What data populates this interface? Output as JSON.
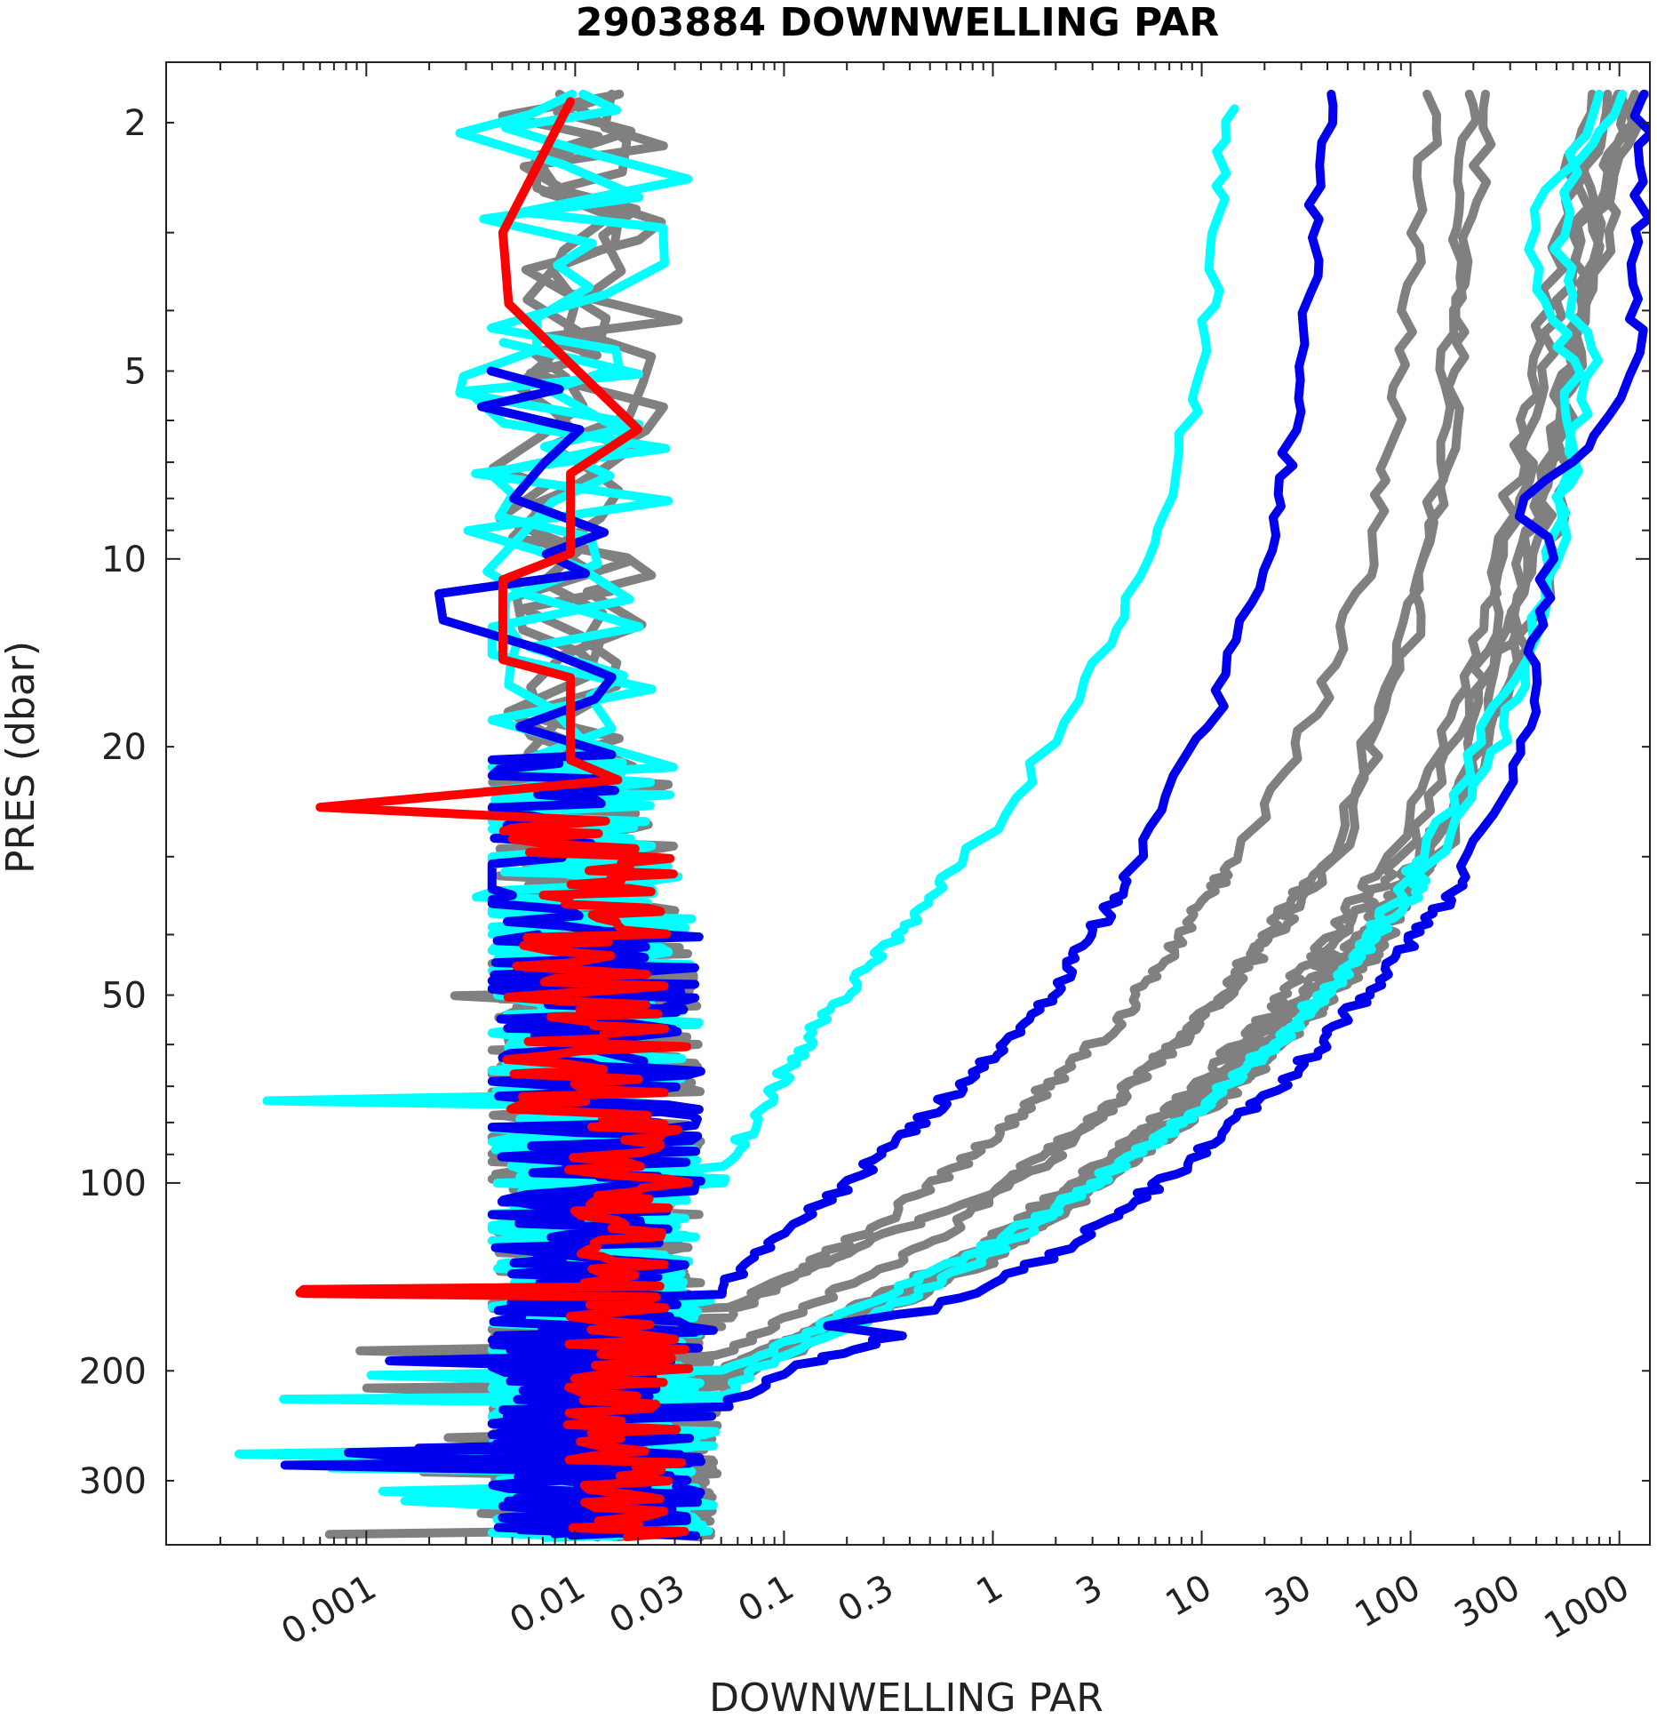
{
  "chart_data": {
    "type": "line",
    "title": "2903884  DOWNWELLING PAR",
    "xlabel": "DOWNWELLING PAR",
    "ylabel": "PRES (dbar)",
    "x_scale": "log",
    "y_scale": "log",
    "y_inverted": true,
    "xlim": [
      0.00011,
      1400
    ],
    "ylim": [
      1.6,
      380
    ],
    "x_ticks": [
      {
        "value": 0.001,
        "label": "0.001"
      },
      {
        "value": 0.01,
        "label": "0.01"
      },
      {
        "value": 0.03,
        "label": "0.03"
      },
      {
        "value": 0.1,
        "label": "0.1"
      },
      {
        "value": 0.3,
        "label": "0.3"
      },
      {
        "value": 1,
        "label": "1"
      },
      {
        "value": 3,
        "label": "3"
      },
      {
        "value": 10,
        "label": "10"
      },
      {
        "value": 30,
        "label": "30"
      },
      {
        "value": 100,
        "label": "100"
      },
      {
        "value": 300,
        "label": "300"
      },
      {
        "value": 1000,
        "label": "1000"
      }
    ],
    "y_ticks": [
      {
        "value": 2,
        "label": "2"
      },
      {
        "value": 5,
        "label": "5"
      },
      {
        "value": 10,
        "label": "10"
      },
      {
        "value": 20,
        "label": "20"
      },
      {
        "value": 50,
        "label": "50"
      },
      {
        "value": 100,
        "label": "100"
      },
      {
        "value": 200,
        "label": "200"
      },
      {
        "value": 300,
        "label": "300"
      }
    ],
    "grid": false,
    "colors": {
      "gray": "#808080",
      "cyan": "#00ffff",
      "blue": "#0000ee",
      "red": "#ff0000"
    },
    "series": [
      {
        "color": "gray",
        "kind": "night",
        "base": 0.0085,
        "jitter": 0.35,
        "start_pres": 1.8,
        "seed": 11
      },
      {
        "color": "gray",
        "kind": "night",
        "base": 0.011,
        "jitter": 0.35,
        "start_pres": 1.8,
        "seed": 12
      },
      {
        "color": "gray",
        "kind": "night",
        "base": 0.013,
        "jitter": 0.4,
        "start_pres": 1.8,
        "seed": 13
      },
      {
        "color": "gray",
        "kind": "night",
        "base": 0.0095,
        "jitter": 0.3,
        "start_pres": 1.8,
        "seed": 14
      },
      {
        "color": "gray",
        "kind": "day",
        "points": [
          [
            240,
            1.8
          ],
          [
            180,
            3.5
          ],
          [
            150,
            7
          ],
          [
            100,
            14
          ],
          [
            45,
            30
          ],
          [
            13,
            50
          ],
          [
            3,
            80
          ],
          [
            0.9,
            105
          ],
          [
            0.25,
            125
          ],
          [
            0.07,
            150
          ],
          [
            0.03,
            180
          ],
          [
            0.015,
            220
          ],
          [
            0.006,
            300
          ],
          [
            0.003,
            360
          ]
        ],
        "seed": 21
      },
      {
        "color": "gray",
        "kind": "day",
        "points": [
          [
            1100,
            1.8
          ],
          [
            650,
            4
          ],
          [
            420,
            8
          ],
          [
            300,
            12
          ],
          [
            160,
            25
          ],
          [
            60,
            40
          ],
          [
            14,
            65
          ],
          [
            3,
            95
          ],
          [
            0.8,
            130
          ],
          [
            0.18,
            165
          ],
          [
            0.05,
            200
          ],
          [
            0.025,
            250
          ],
          [
            0.02,
            340
          ]
        ],
        "seed": 22
      },
      {
        "color": "gray",
        "kind": "day",
        "points": [
          [
            900,
            1.8
          ],
          [
            500,
            4
          ],
          [
            330,
            8
          ],
          [
            230,
            14
          ],
          [
            110,
            27
          ],
          [
            30,
            50
          ],
          [
            6,
            85
          ],
          [
            1.4,
            120
          ],
          [
            0.3,
            155
          ],
          [
            0.07,
            190
          ],
          [
            0.03,
            240
          ],
          [
            0.02,
            330
          ]
        ],
        "seed": 23
      },
      {
        "color": "gray",
        "kind": "day",
        "points": [
          [
            700,
            1.8
          ],
          [
            420,
            4.5
          ],
          [
            280,
            9
          ],
          [
            180,
            16
          ],
          [
            80,
            30
          ],
          [
            20,
            55
          ],
          [
            4,
            90
          ],
          [
            1,
            125
          ],
          [
            0.2,
            160
          ],
          [
            0.06,
            200
          ],
          [
            0.03,
            260
          ],
          [
            0.025,
            350
          ]
        ],
        "seed": 24
      },
      {
        "color": "gray",
        "kind": "day",
        "points": [
          [
            1300,
            1.8
          ],
          [
            700,
            4
          ],
          [
            450,
            8
          ],
          [
            330,
            13
          ],
          [
            180,
            26
          ],
          [
            70,
            42
          ],
          [
            18,
            65
          ],
          [
            4,
            95
          ],
          [
            1,
            130
          ],
          [
            0.25,
            165
          ],
          [
            0.06,
            200
          ],
          [
            0.03,
            260
          ]
        ],
        "seed": 25
      },
      {
        "color": "gray",
        "kind": "day",
        "points": [
          [
            1200,
            1.8
          ],
          [
            650,
            4
          ],
          [
            420,
            8
          ],
          [
            310,
            13
          ],
          [
            170,
            25
          ],
          [
            60,
            45
          ],
          [
            15,
            70
          ],
          [
            3.5,
            100
          ],
          [
            0.9,
            135
          ],
          [
            0.2,
            170
          ],
          [
            0.05,
            210
          ],
          [
            0.025,
            280
          ]
        ],
        "seed": 26
      },
      {
        "color": "gray",
        "kind": "day",
        "points": [
          [
            200,
            1.8
          ],
          [
            160,
            4
          ],
          [
            130,
            8
          ],
          [
            90,
            14
          ],
          [
            40,
            30
          ],
          [
            10,
            55
          ],
          [
            2,
            90
          ],
          [
            0.5,
            125
          ],
          [
            0.12,
            160
          ],
          [
            0.04,
            200
          ],
          [
            0.02,
            260
          ]
        ],
        "seed": 27
      },
      {
        "color": "gray",
        "kind": "day",
        "points": [
          [
            130,
            1.8
          ],
          [
            90,
            5
          ],
          [
            70,
            9
          ],
          [
            40,
            16
          ],
          [
            15,
            30
          ],
          [
            4,
            55
          ],
          [
            1,
            85
          ],
          [
            0.3,
            115
          ],
          [
            0.08,
            150
          ],
          [
            0.03,
            190
          ],
          [
            0.015,
            250
          ]
        ],
        "seed": 28
      },
      {
        "color": "gray",
        "kind": "day",
        "points": [
          [
            800,
            1.8
          ],
          [
            600,
            5
          ],
          [
            500,
            10
          ],
          [
            250,
            18
          ],
          [
            90,
            35
          ],
          [
            25,
            55
          ],
          [
            7,
            80
          ],
          [
            2,
            110
          ],
          [
            0.5,
            145
          ],
          [
            0.1,
            180
          ],
          [
            0.04,
            220
          ],
          [
            0.02,
            300
          ]
        ],
        "seed": 29
      },
      {
        "color": "cyan",
        "kind": "night",
        "base": 0.0075,
        "jitter": 0.45,
        "start_pres": 1.8,
        "seed": 31
      },
      {
        "color": "cyan",
        "kind": "night",
        "base": 0.012,
        "jitter": 0.5,
        "start_pres": 1.8,
        "seed": 32
      },
      {
        "color": "cyan",
        "kind": "night",
        "base": 0.008,
        "jitter": 0.6,
        "start_pres": 4.5,
        "seed": 33
      },
      {
        "color": "cyan",
        "kind": "day",
        "points": [
          [
            13,
            1.9
          ],
          [
            11,
            4
          ],
          [
            8,
            7
          ],
          [
            5,
            11
          ],
          [
            2.5,
            17
          ],
          [
            1,
            27
          ],
          [
            0.35,
            40
          ],
          [
            0.15,
            55
          ],
          [
            0.08,
            75
          ],
          [
            0.05,
            95
          ],
          [
            0.04,
            120
          ],
          [
            0.035,
            150
          ],
          [
            0.03,
            180
          ]
        ],
        "seed": 41
      },
      {
        "color": "cyan",
        "kind": "day",
        "points": [
          [
            750,
            1.8
          ],
          [
            500,
            3
          ],
          [
            750,
            5
          ],
          [
            500,
            9
          ],
          [
            350,
            16
          ],
          [
            200,
            24
          ],
          [
            100,
            35
          ],
          [
            30,
            55
          ],
          [
            8,
            80
          ],
          [
            2,
            110
          ],
          [
            0.5,
            140
          ],
          [
            0.15,
            170
          ],
          [
            0.05,
            200
          ],
          [
            0.03,
            230
          ]
        ],
        "seed": 42
      },
      {
        "color": "cyan",
        "kind": "day",
        "points": [
          [
            1000,
            1.8
          ],
          [
            350,
            3.0
          ],
          [
            600,
            5
          ],
          [
            550,
            9
          ],
          [
            320,
            15
          ],
          [
            150,
            26
          ],
          [
            60,
            42
          ],
          [
            18,
            65
          ],
          [
            4,
            95
          ],
          [
            1,
            130
          ],
          [
            0.25,
            165
          ],
          [
            0.07,
            200
          ],
          [
            0.04,
            240
          ]
        ],
        "seed": 43
      },
      {
        "color": "blue",
        "kind": "night",
        "base": 0.0055,
        "jitter": 0.45,
        "start_pres": 5,
        "seed": 51
      },
      {
        "color": "blue",
        "kind": "night",
        "base": 0.014,
        "jitter": 0.5,
        "start_pres": 40,
        "seed": 52
      },
      {
        "color": "blue",
        "kind": "day",
        "points": [
          [
            40,
            1.8
          ],
          [
            32,
            4
          ],
          [
            25,
            7
          ],
          [
            18,
            11
          ],
          [
            12,
            17
          ],
          [
            6,
            27
          ],
          [
            3,
            40
          ],
          [
            1.5,
            55
          ],
          [
            0.7,
            70
          ],
          [
            0.3,
            90
          ],
          [
            0.12,
            115
          ],
          [
            0.06,
            140
          ],
          [
            0.03,
            170
          ],
          [
            0.025,
            200
          ]
        ],
        "seed": 61
      },
      {
        "color": "blue",
        "kind": "day",
        "points": [
          [
            1300,
            1.8
          ],
          [
            1200,
            5
          ],
          [
            800,
            6.5
          ],
          [
            300,
            8.1
          ],
          [
            500,
            9.5
          ],
          [
            420,
            12
          ],
          [
            380,
            18
          ],
          [
            250,
            25
          ],
          [
            150,
            35
          ],
          [
            80,
            45
          ],
          [
            30,
            65
          ],
          [
            8,
            95
          ],
          [
            2,
            130
          ],
          [
            0.5,
            160
          ],
          [
            0.15,
            170
          ],
          [
            0.35,
            175
          ],
          [
            0.1,
            200
          ],
          [
            0.05,
            230
          ],
          [
            0.03,
            260
          ]
        ],
        "seed": 62
      },
      {
        "color": "red",
        "kind": "red",
        "seed": 71
      }
    ]
  }
}
